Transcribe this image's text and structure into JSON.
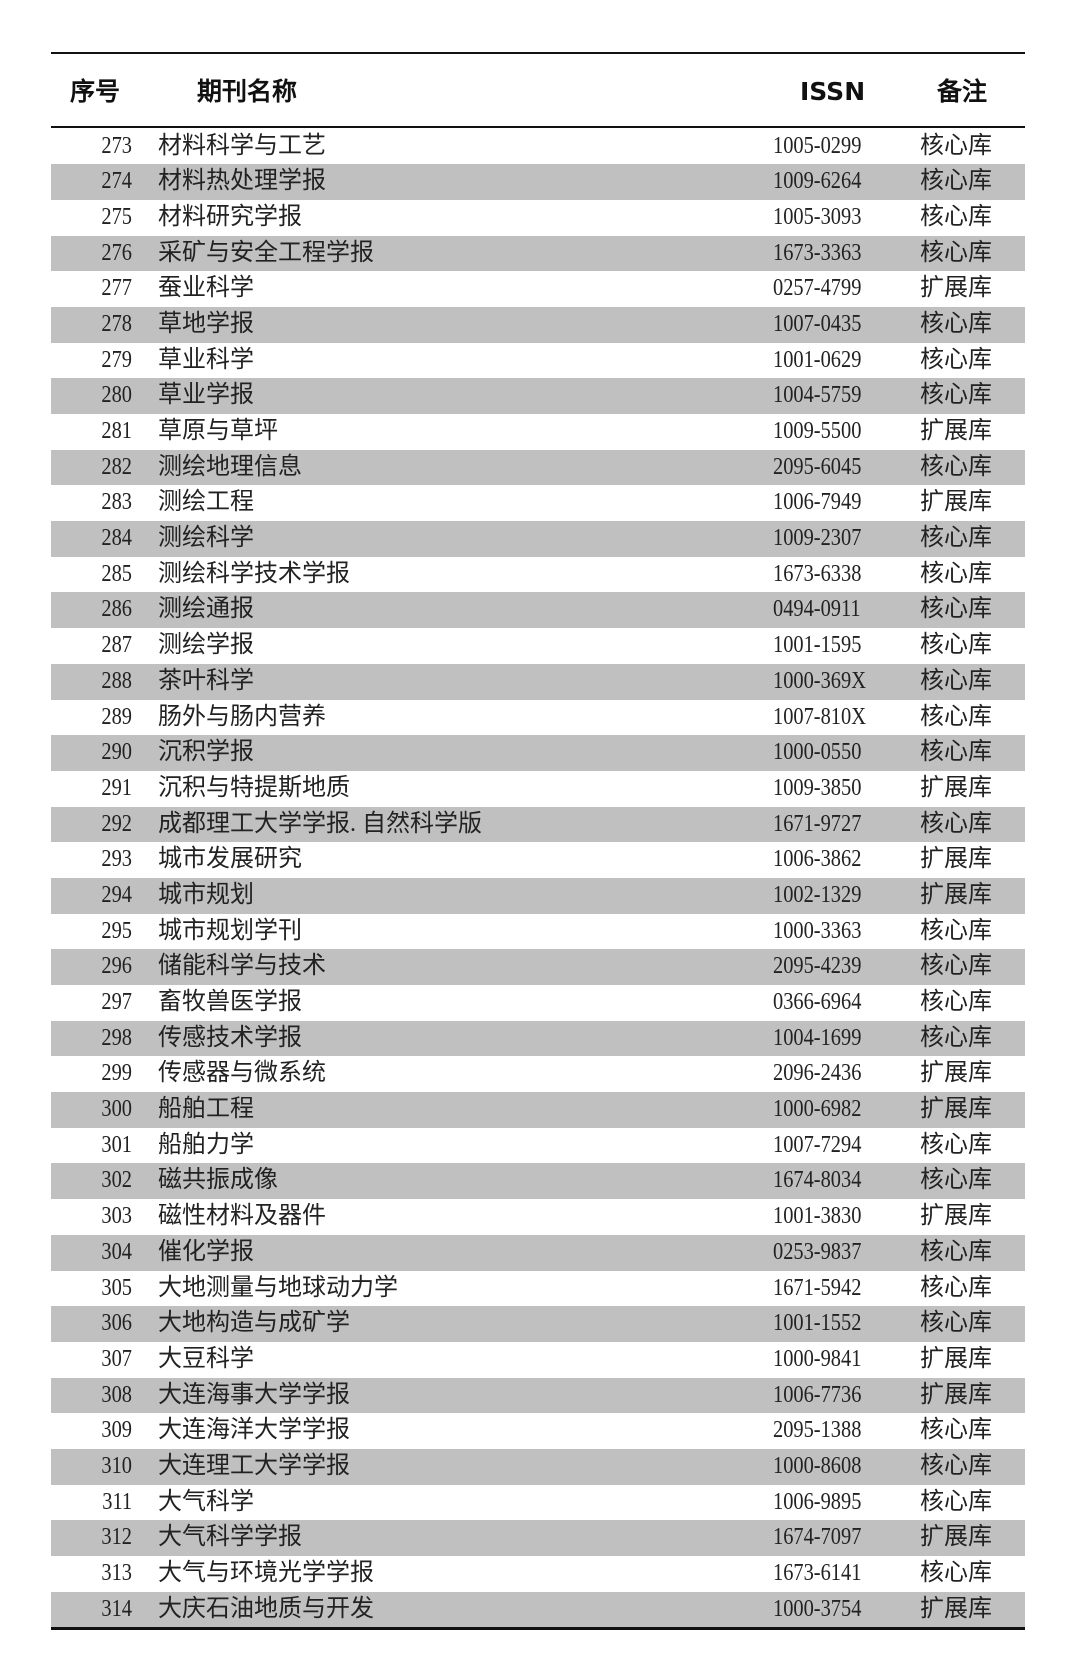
{
  "header": {
    "no": "序号",
    "name": "期刊名称",
    "issn": "ISSN",
    "note": "备注"
  },
  "shade_color": "#c0c0c0",
  "rows": [
    {
      "no": "273",
      "name": "材料科学与工艺",
      "issn": "1005-0299",
      "note": "核心库"
    },
    {
      "no": "274",
      "name": "材料热处理学报",
      "issn": "1009-6264",
      "note": "核心库"
    },
    {
      "no": "275",
      "name": "材料研究学报",
      "issn": "1005-3093",
      "note": "核心库"
    },
    {
      "no": "276",
      "name": "采矿与安全工程学报",
      "issn": "1673-3363",
      "note": "核心库"
    },
    {
      "no": "277",
      "name": "蚕业科学",
      "issn": "0257-4799",
      "note": "扩展库"
    },
    {
      "no": "278",
      "name": "草地学报",
      "issn": "1007-0435",
      "note": "核心库"
    },
    {
      "no": "279",
      "name": "草业科学",
      "issn": "1001-0629",
      "note": "核心库"
    },
    {
      "no": "280",
      "name": "草业学报",
      "issn": "1004-5759",
      "note": "核心库"
    },
    {
      "no": "281",
      "name": "草原与草坪",
      "issn": "1009-5500",
      "note": "扩展库"
    },
    {
      "no": "282",
      "name": "测绘地理信息",
      "issn": "2095-6045",
      "note": "核心库"
    },
    {
      "no": "283",
      "name": "测绘工程",
      "issn": "1006-7949",
      "note": "扩展库"
    },
    {
      "no": "284",
      "name": "测绘科学",
      "issn": "1009-2307",
      "note": "核心库"
    },
    {
      "no": "285",
      "name": "测绘科学技术学报",
      "issn": "1673-6338",
      "note": "核心库"
    },
    {
      "no": "286",
      "name": "测绘通报",
      "issn": "0494-0911",
      "note": "核心库"
    },
    {
      "no": "287",
      "name": "测绘学报",
      "issn": "1001-1595",
      "note": "核心库"
    },
    {
      "no": "288",
      "name": "茶叶科学",
      "issn": "1000-369X",
      "note": "核心库"
    },
    {
      "no": "289",
      "name": "肠外与肠内营养",
      "issn": "1007-810X",
      "note": "核心库"
    },
    {
      "no": "290",
      "name": "沉积学报",
      "issn": "1000-0550",
      "note": "核心库"
    },
    {
      "no": "291",
      "name": "沉积与特提斯地质",
      "issn": "1009-3850",
      "note": "扩展库"
    },
    {
      "no": "292",
      "name": "成都理工大学学报. 自然科学版",
      "issn": "1671-9727",
      "note": "核心库"
    },
    {
      "no": "293",
      "name": "城市发展研究",
      "issn": "1006-3862",
      "note": "扩展库"
    },
    {
      "no": "294",
      "name": "城市规划",
      "issn": "1002-1329",
      "note": "扩展库"
    },
    {
      "no": "295",
      "name": "城市规划学刊",
      "issn": "1000-3363",
      "note": "核心库"
    },
    {
      "no": "296",
      "name": "储能科学与技术",
      "issn": "2095-4239",
      "note": "核心库"
    },
    {
      "no": "297",
      "name": "畜牧兽医学报",
      "issn": "0366-6964",
      "note": "核心库"
    },
    {
      "no": "298",
      "name": "传感技术学报",
      "issn": "1004-1699",
      "note": "核心库"
    },
    {
      "no": "299",
      "name": "传感器与微系统",
      "issn": "2096-2436",
      "note": "扩展库"
    },
    {
      "no": "300",
      "name": "船舶工程",
      "issn": "1000-6982",
      "note": "扩展库"
    },
    {
      "no": "301",
      "name": "船舶力学",
      "issn": "1007-7294",
      "note": "核心库"
    },
    {
      "no": "302",
      "name": "磁共振成像",
      "issn": "1674-8034",
      "note": "核心库"
    },
    {
      "no": "303",
      "name": "磁性材料及器件",
      "issn": "1001-3830",
      "note": "扩展库"
    },
    {
      "no": "304",
      "name": "催化学报",
      "issn": "0253-9837",
      "note": "核心库"
    },
    {
      "no": "305",
      "name": "大地测量与地球动力学",
      "issn": "1671-5942",
      "note": "核心库"
    },
    {
      "no": "306",
      "name": "大地构造与成矿学",
      "issn": "1001-1552",
      "note": "核心库"
    },
    {
      "no": "307",
      "name": "大豆科学",
      "issn": "1000-9841",
      "note": "扩展库"
    },
    {
      "no": "308",
      "name": "大连海事大学学报",
      "issn": "1006-7736",
      "note": "扩展库"
    },
    {
      "no": "309",
      "name": "大连海洋大学学报",
      "issn": "2095-1388",
      "note": "核心库"
    },
    {
      "no": "310",
      "name": "大连理工大学学报",
      "issn": "1000-8608",
      "note": "核心库"
    },
    {
      "no": "311",
      "name": "大气科学",
      "issn": "1006-9895",
      "note": "核心库"
    },
    {
      "no": "312",
      "name": "大气科学学报",
      "issn": "1674-7097",
      "note": "扩展库"
    },
    {
      "no": "313",
      "name": "大气与环境光学学报",
      "issn": "1673-6141",
      "note": "核心库"
    },
    {
      "no": "314",
      "name": "大庆石油地质与开发",
      "issn": "1000-3754",
      "note": "扩展库"
    }
  ]
}
